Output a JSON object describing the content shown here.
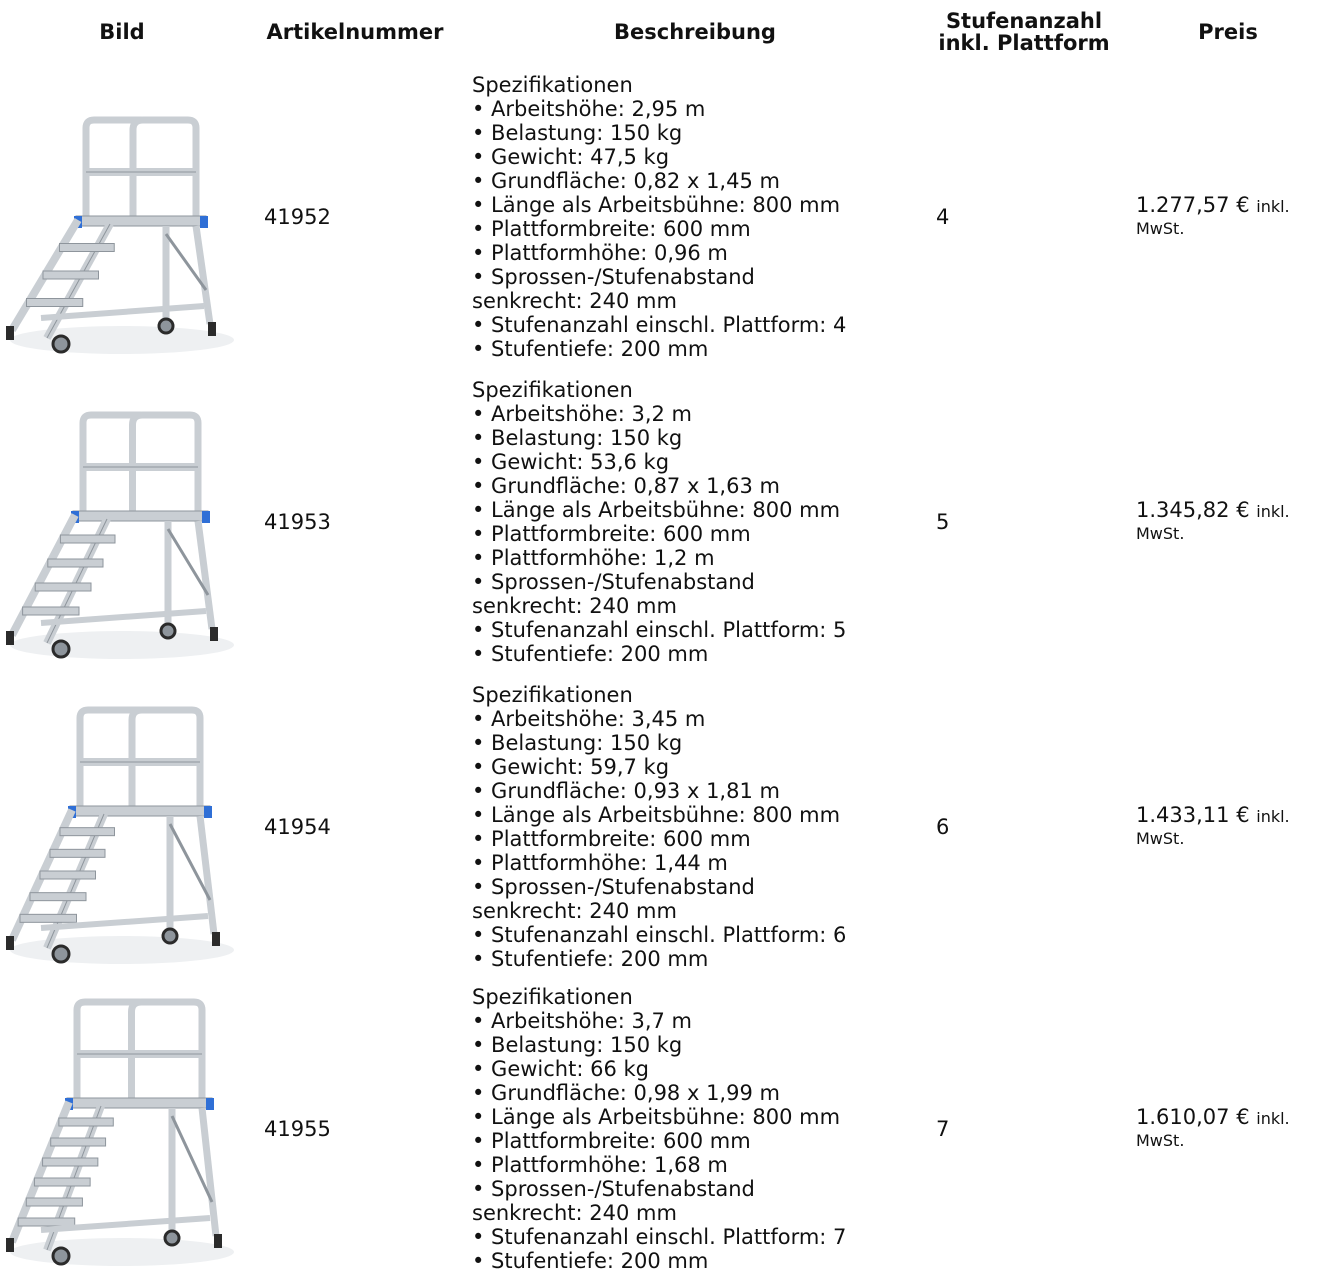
{
  "table": {
    "headers": {
      "image": "Bild",
      "article": "Artikelnummer",
      "description": "Beschreibung",
      "steps_line1": "Stufenanzahl",
      "steps_line2": "inkl. Plattform",
      "price": "Preis"
    },
    "rows": [
      {
        "image_icon": "rolling-platform-ladder-icon",
        "article_number": "41952",
        "description": {
          "heading": "Spezifikationen",
          "lines": [
            "• Arbeitshöhe: 2,95 m",
            "• Belastung: 150 kg",
            "• Gewicht: 47,5 kg",
            "• Grundfläche: 0,82 x 1,45 m",
            "• Länge als Arbeitsbühne: 800 mm",
            "• Plattformbreite: 600 mm",
            "• Plattformhöhe: 0,96 m",
            "• Sprossen-/Stufenabstand",
            "senkrecht: 240 mm",
            "• Stufenanzahl einschl. Plattform: 4",
            "• Stufentiefe: 200 mm"
          ]
        },
        "steps": "4",
        "price": "1.277,57 €",
        "price_suffix_1": "inkl.",
        "price_suffix_2": "MwSt.",
        "visual_step_count": 4
      },
      {
        "image_icon": "rolling-platform-ladder-icon",
        "article_number": "41953",
        "description": {
          "heading": "Spezifikationen",
          "lines": [
            "• Arbeitshöhe: 3,2 m",
            "• Belastung: 150 kg",
            "• Gewicht: 53,6 kg",
            "• Grundfläche: 0,87 x 1,63 m",
            "• Länge als Arbeitsbühne: 800 mm",
            "• Plattformbreite: 600 mm",
            "• Plattformhöhe: 1,2 m",
            "• Sprossen-/Stufenabstand",
            "senkrecht: 240 mm",
            "• Stufenanzahl einschl. Plattform: 5",
            "• Stufentiefe: 200 mm"
          ]
        },
        "steps": "5",
        "price": "1.345,82 €",
        "price_suffix_1": "inkl.",
        "price_suffix_2": "MwSt.",
        "visual_step_count": 5
      },
      {
        "image_icon": "rolling-platform-ladder-icon",
        "article_number": "41954",
        "description": {
          "heading": "Spezifikationen",
          "lines": [
            "• Arbeitshöhe: 3,45 m",
            "• Belastung: 150 kg",
            "• Gewicht: 59,7 kg",
            "• Grundfläche: 0,93 x 1,81 m",
            "• Länge als Arbeitsbühne: 800 mm",
            "• Plattformbreite: 600 mm",
            "• Plattformhöhe: 1,44 m",
            "• Sprossen-/Stufenabstand",
            "senkrecht: 240 mm",
            "• Stufenanzahl einschl. Plattform: 6",
            "• Stufentiefe: 200 mm"
          ]
        },
        "steps": "6",
        "price": "1.433,11 €",
        "price_suffix_1": "inkl.",
        "price_suffix_2": "MwSt.",
        "visual_step_count": 6
      },
      {
        "image_icon": "rolling-platform-ladder-icon",
        "article_number": "41955",
        "description": {
          "heading": "Spezifikationen",
          "lines": [
            "• Arbeitshöhe: 3,7 m",
            "• Belastung: 150 kg",
            "• Gewicht: 66 kg",
            "• Grundfläche: 0,98 x 1,99 m",
            "• Länge als Arbeitsbühne: 800 mm",
            "• Plattformbreite: 600 mm",
            "• Plattformhöhe: 1,68 m",
            "• Sprossen-/Stufenabstand",
            "senkrecht: 240 mm",
            "• Stufenanzahl einschl. Plattform: 7",
            "• Stufentiefe: 200 mm"
          ]
        },
        "steps": "7",
        "price": "1.610,07 €",
        "price_suffix_1": "inkl.",
        "price_suffix_2": "MwSt.",
        "visual_step_count": 7
      }
    ]
  },
  "colors": {
    "aluminium": "#c9ced3",
    "aluminium_dark": "#8e959c",
    "accent_blue": "#2f6fd6",
    "wheel": "#2b2b2b"
  }
}
